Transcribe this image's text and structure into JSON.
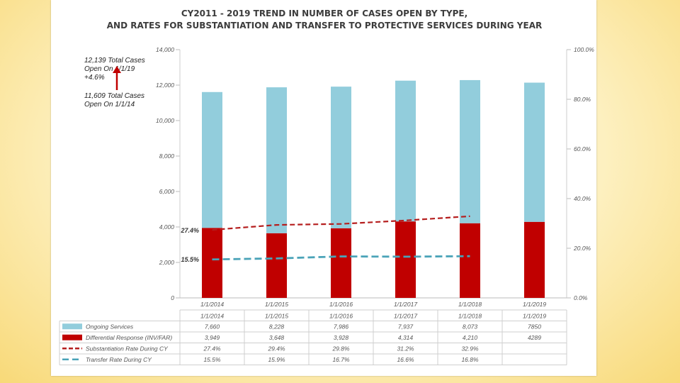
{
  "chart_data": {
    "type": "bar",
    "title_line1": "CY2011 - 2019 TREND IN NUMBER OF CASES OPEN BY TYPE,",
    "title_line2": "AND RATES FOR SUBSTANTIATION AND TRANSFER TO PROTECTIVE SERVICES DURING YEAR",
    "categories": [
      "1/1/2014",
      "1/1/2015",
      "1/1/2016",
      "1/1/2017",
      "1/1/2018",
      "1/1/2019"
    ],
    "left_axis": {
      "min": 0,
      "max": 14000,
      "ticks": [
        "0",
        "2,000",
        "4,000",
        "6,000",
        "8,000",
        "10,000",
        "12,000",
        "14,000"
      ]
    },
    "right_axis": {
      "min": 0,
      "max": 100,
      "ticks": [
        "0.0%",
        "20.0%",
        "40.0%",
        "60.0%",
        "80.0%",
        "100.0%"
      ]
    },
    "series": [
      {
        "name": "Ongoing Services",
        "kind": "bar-stack",
        "color": "#92cddc",
        "values": [
          7660,
          8228,
          7986,
          7937,
          8073,
          7850
        ],
        "labels": [
          "7,660",
          "8,228",
          "7,986",
          "7,937",
          "8,073",
          "7850"
        ]
      },
      {
        "name": "Differential Response (INV/FAR)",
        "kind": "bar-stack",
        "color": "#c00000",
        "values": [
          3949,
          3648,
          3928,
          4314,
          4210,
          4289
        ],
        "labels": [
          "3,949",
          "3,648",
          "3,928",
          "4,314",
          "4,210",
          "4289"
        ]
      },
      {
        "name": "Substantiation Rate During CY",
        "kind": "line",
        "color": "#b51e1e",
        "axis": "right",
        "values": [
          27.4,
          29.4,
          29.8,
          31.2,
          32.9,
          null
        ],
        "labels": [
          "27.4%",
          "29.4%",
          "29.8%",
          "31.2%",
          "32.9%",
          ""
        ]
      },
      {
        "name": "Transfer Rate During CY",
        "kind": "line",
        "color": "#4aa3b8",
        "axis": "right",
        "values": [
          15.5,
          15.9,
          16.7,
          16.6,
          16.8,
          null
        ],
        "labels": [
          "15.5%",
          "15.9%",
          "16.7%",
          "16.6%",
          "16.8%",
          ""
        ]
      }
    ],
    "point_labels": [
      "27.4%",
      "15.5%"
    ],
    "callouts": {
      "top": [
        "12,139 Total Cases",
        "Open On 1/1/19",
        "+4.6%"
      ],
      "bottom": [
        "11,609 Total Cases",
        "Open On 1/1/14"
      ]
    }
  }
}
